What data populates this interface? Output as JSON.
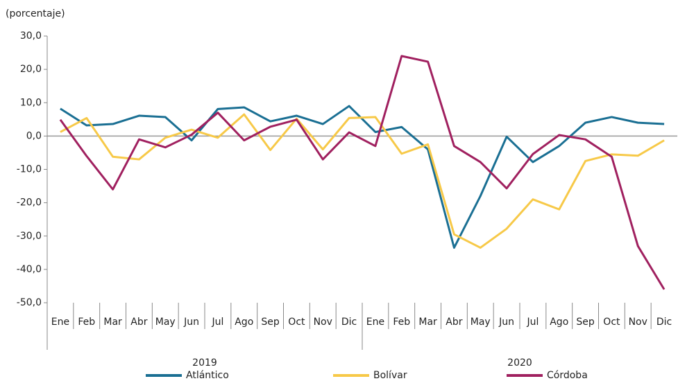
{
  "chart_data": {
    "type": "line",
    "y_axis_label": "(porcentaje)",
    "categories": [
      "Ene",
      "Feb",
      "Mar",
      "Abr",
      "May",
      "Jun",
      "Jul",
      "Ago",
      "Sep",
      "Oct",
      "Nov",
      "Dic",
      "Ene",
      "Feb",
      "Mar",
      "Abr",
      "May",
      "Jun",
      "Jul",
      "Ago",
      "Sep",
      "Oct",
      "Nov",
      "Dic"
    ],
    "x_groups": [
      "2019",
      "2020"
    ],
    "ylim": [
      -50,
      30
    ],
    "yticks": [
      {
        "value": 30,
        "label": "30,0"
      },
      {
        "value": 20,
        "label": "20,0"
      },
      {
        "value": 10,
        "label": "10,0"
      },
      {
        "value": 0,
        "label": "0,0"
      },
      {
        "value": -10,
        "label": "-10,0"
      },
      {
        "value": -20,
        "label": "-20,0"
      },
      {
        "value": -30,
        "label": "-30,0"
      },
      {
        "value": -40,
        "label": "-40,0"
      },
      {
        "value": -50,
        "label": "-50,0"
      }
    ],
    "series": [
      {
        "name": "Atlántico",
        "color": "#1a6f93",
        "values": [
          8.2,
          3.2,
          3.6,
          6.1,
          5.7,
          -1.3,
          8.1,
          8.6,
          4.4,
          6.1,
          3.6,
          9.0,
          1.2,
          2.7,
          -4.0,
          -33.5,
          -18.0,
          -0.2,
          -7.8,
          -3.0,
          4.0,
          5.7,
          4.0,
          3.6
        ]
      },
      {
        "name": "Bolívar",
        "color": "#f7c948",
        "values": [
          1.2,
          5.4,
          -6.2,
          -7.0,
          -0.5,
          1.9,
          -0.5,
          6.5,
          -4.2,
          5.2,
          -4.0,
          5.4,
          5.7,
          -5.3,
          -2.5,
          -29.5,
          -33.5,
          -27.8,
          -19.0,
          -22.0,
          -7.5,
          -5.5,
          -5.9,
          -1.3
        ]
      },
      {
        "name": "Córdoba",
        "color": "#a0205f",
        "values": [
          4.9,
          -6.0,
          -16.0,
          -1.0,
          -3.4,
          0.4,
          7.0,
          -1.3,
          2.8,
          4.9,
          -7.0,
          1.1,
          -3.0,
          24.0,
          22.3,
          -3.0,
          -7.8,
          -15.7,
          -5.4,
          0.3,
          -1.0,
          -6.2,
          -33.0,
          -46.0
        ]
      }
    ]
  }
}
